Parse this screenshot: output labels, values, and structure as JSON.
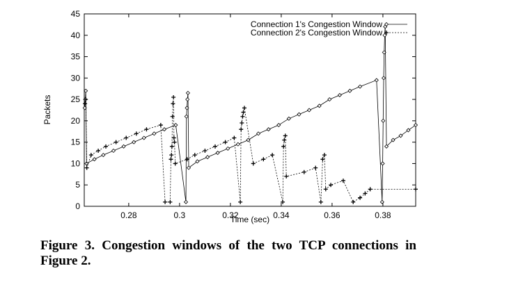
{
  "chart_data": {
    "type": "line",
    "xlabel": "Time (sec)",
    "ylabel": "Packets",
    "caption": "Figure 3. Congestion windows of the two TCP connections in Figure 2.",
    "xlim": [
      0.2625,
      0.3929
    ],
    "ylim": [
      0,
      45
    ],
    "xticks": [
      0.28,
      0.3,
      0.32,
      0.34,
      0.36,
      0.38
    ],
    "yticks": [
      0,
      5,
      10,
      15,
      20,
      25,
      30,
      35,
      40,
      45
    ],
    "legend": "upper right",
    "series": [
      {
        "name": "Connection 1's Congestion Window",
        "color": "#000000",
        "marker": "diamond",
        "linestyle": "solid",
        "x": [
          0.2627,
          0.2629,
          0.2631,
          0.2634,
          0.2665,
          0.27,
          0.274,
          0.278,
          0.282,
          0.286,
          0.29,
          0.294,
          0.2985,
          0.3025,
          0.3027,
          0.3029,
          0.3031,
          0.3033,
          0.3036,
          0.307,
          0.311,
          0.315,
          0.319,
          0.323,
          0.327,
          0.331,
          0.335,
          0.339,
          0.343,
          0.347,
          0.351,
          0.355,
          0.359,
          0.363,
          0.367,
          0.371,
          0.3775,
          0.3797,
          0.3799,
          0.3801,
          0.3803,
          0.3805,
          0.3807,
          0.3809,
          0.3814,
          0.384,
          0.387,
          0.39,
          0.3929
        ],
        "values": [
          23,
          25,
          27,
          10,
          11,
          12,
          13,
          14,
          15,
          16,
          17,
          18,
          19,
          1,
          21,
          23,
          25,
          26.5,
          9,
          10.5,
          11.5,
          12.5,
          13.5,
          14.5,
          15.5,
          17,
          18,
          19,
          20.5,
          21.5,
          22.5,
          23.5,
          25,
          26,
          27,
          28,
          29.5,
          1,
          10,
          20,
          30,
          36,
          40,
          42,
          14,
          15.5,
          16.5,
          17.8,
          19
        ]
      },
      {
        "name": "Connection 2's Congestion Window",
        "color": "#000000",
        "marker": "plus",
        "linestyle": "dashed",
        "x": [
          0.2628,
          0.2631,
          0.2635,
          0.2652,
          0.268,
          0.271,
          0.275,
          0.279,
          0.283,
          0.287,
          0.2926,
          0.2943,
          0.2963,
          0.2966,
          0.2968,
          0.297,
          0.2972,
          0.2974,
          0.2976,
          0.2978,
          0.298,
          0.2983,
          0.303,
          0.306,
          0.31,
          0.314,
          0.318,
          0.3215,
          0.3239,
          0.3242,
          0.3245,
          0.3248,
          0.3251,
          0.3255,
          0.329,
          0.333,
          0.3365,
          0.3406,
          0.3409,
          0.3412,
          0.3416,
          0.342,
          0.349,
          0.3535,
          0.3556,
          0.3563,
          0.357,
          0.3575,
          0.3595,
          0.3644,
          0.3683,
          0.371,
          0.373,
          0.375,
          0.3929
        ],
        "values": [
          24,
          25,
          9,
          12,
          13,
          14,
          15,
          16,
          17,
          18,
          19,
          1,
          1,
          11,
          12,
          14,
          21,
          24,
          25.5,
          16,
          15,
          10,
          11,
          12,
          13,
          14,
          15,
          16,
          1,
          18,
          19.5,
          21,
          22,
          23,
          10,
          11,
          12,
          1,
          14,
          15.5,
          16.5,
          7,
          8,
          9,
          1,
          11,
          12,
          4,
          5,
          6,
          1,
          2,
          3,
          4,
          4
        ]
      }
    ]
  }
}
